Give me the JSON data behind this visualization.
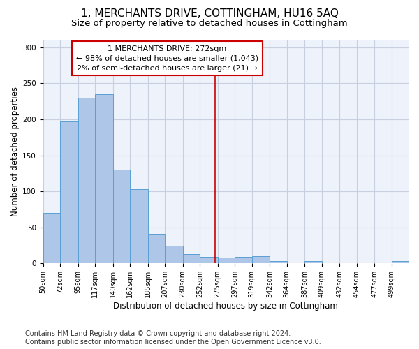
{
  "title": "1, MERCHANTS DRIVE, COTTINGHAM, HU16 5AQ",
  "subtitle": "Size of property relative to detached houses in Cottingham",
  "xlabel": "Distribution of detached houses by size in Cottingham",
  "ylabel": "Number of detached properties",
  "footer_line1": "Contains HM Land Registry data © Crown copyright and database right 2024.",
  "footer_line2": "Contains public sector information licensed under the Open Government Licence v3.0.",
  "annotation_line1": "1 MERCHANTS DRIVE: 272sqm",
  "annotation_line2": "← 98% of detached houses are smaller (1,043)",
  "annotation_line3": "2% of semi-detached houses are larger (21) →",
  "bar_edges": [
    50,
    72,
    95,
    117,
    140,
    162,
    185,
    207,
    230,
    252,
    275,
    297,
    319,
    342,
    364,
    387,
    409,
    432,
    454,
    477,
    499
  ],
  "bar_heights": [
    70,
    197,
    230,
    235,
    130,
    103,
    41,
    24,
    13,
    9,
    8,
    9,
    10,
    3,
    0,
    3,
    0,
    0,
    0,
    0,
    3
  ],
  "bar_color": "#aec6e8",
  "bar_edge_color": "#5a9fd4",
  "property_line_x": 272,
  "property_line_color": "#cc0000",
  "ylim": [
    0,
    310
  ],
  "xlim_min": 50,
  "xlim_max": 521,
  "grid_color": "#c8d0e0",
  "background_color": "#eef2fa",
  "annotation_box_color": "#ffffff",
  "annotation_box_edge_color": "#cc0000",
  "title_fontsize": 11,
  "subtitle_fontsize": 9.5,
  "axis_label_fontsize": 8.5,
  "tick_fontsize": 7,
  "annotation_fontsize": 8,
  "footer_fontsize": 7
}
